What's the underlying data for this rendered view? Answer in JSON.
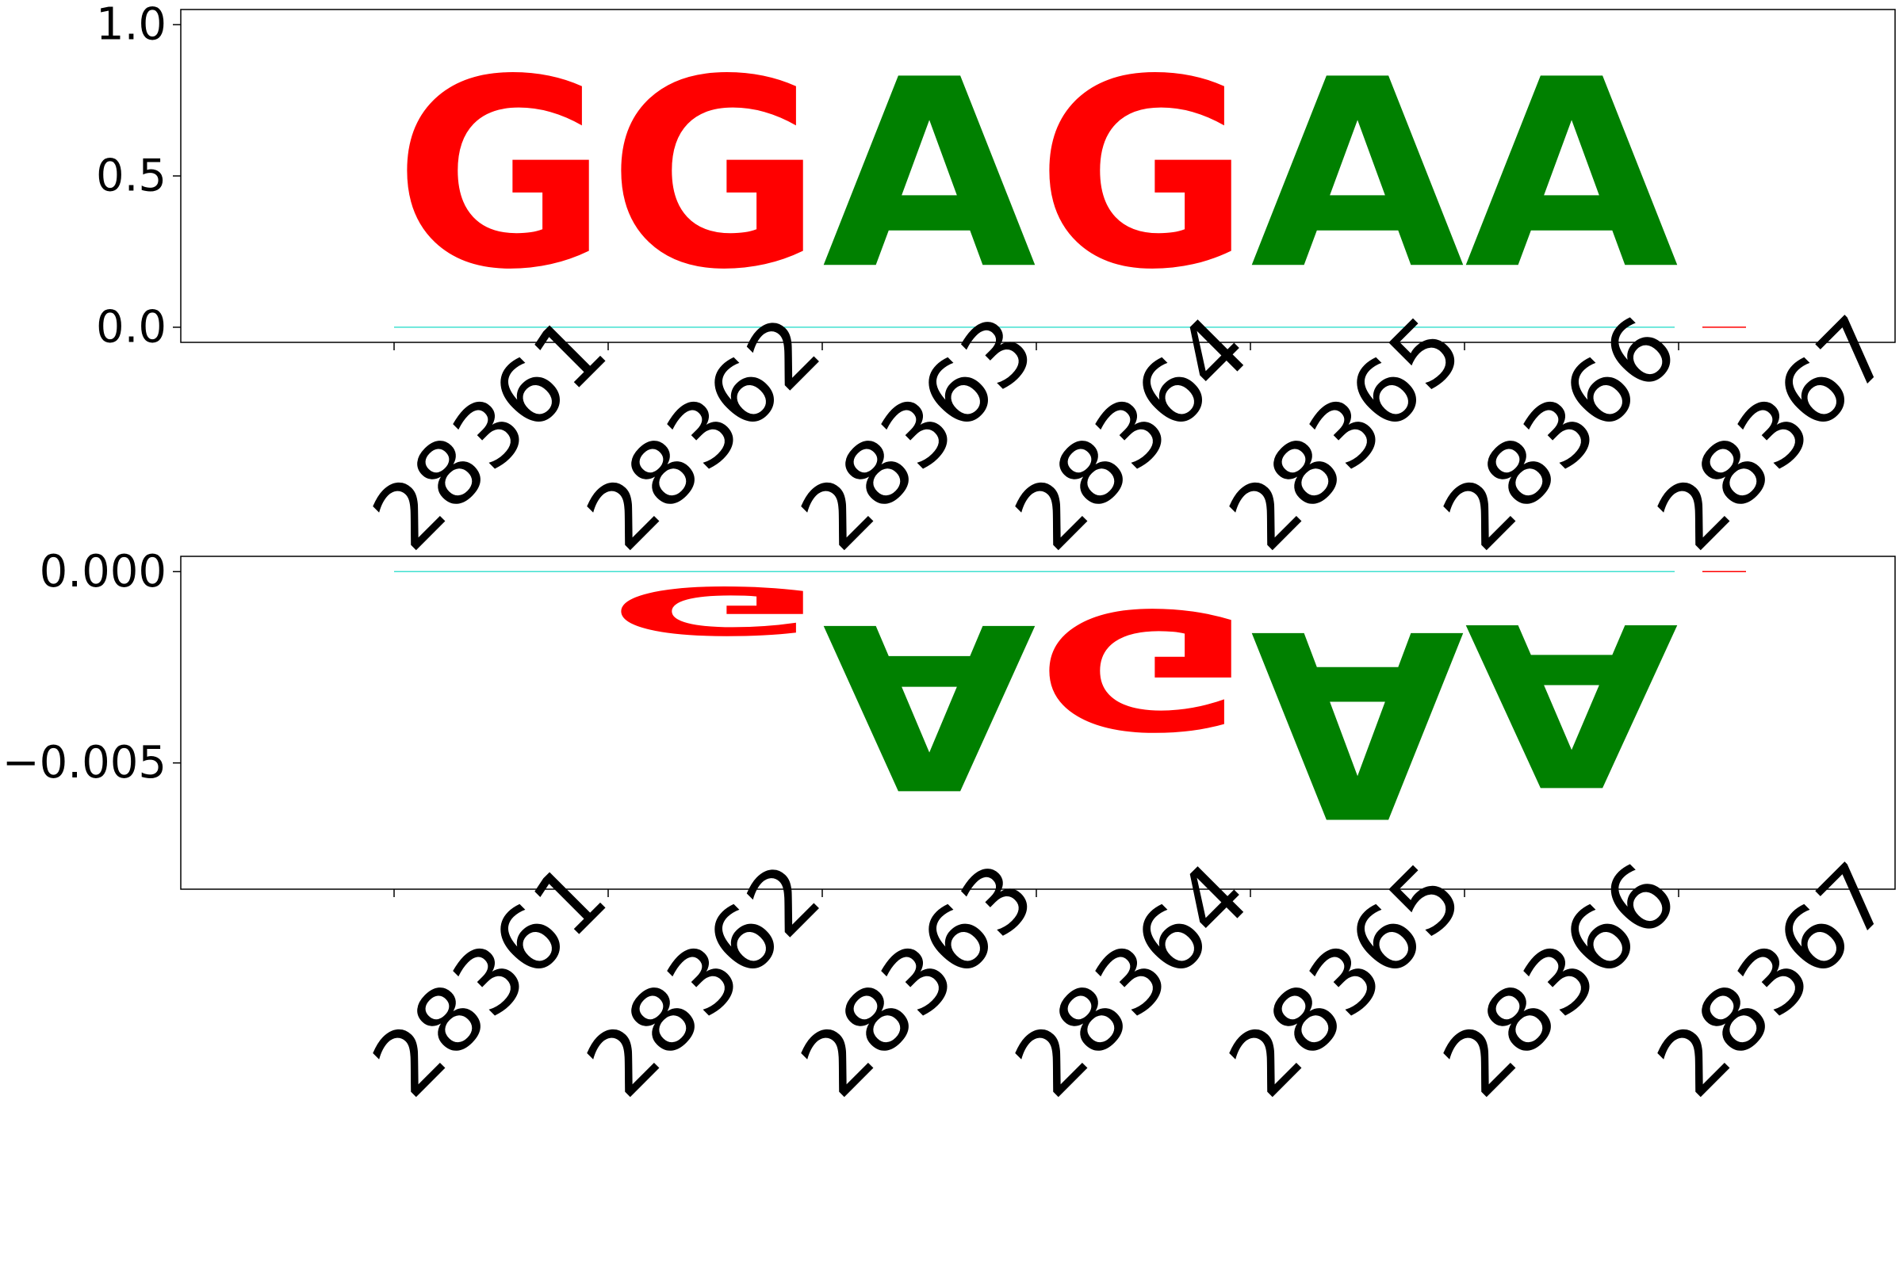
{
  "chart_data": [
    {
      "type": "logo",
      "title": "",
      "xlabel": "",
      "ylabel": "",
      "positions": [
        "28361",
        "28362",
        "28363",
        "28364",
        "28365",
        "28366",
        "28367"
      ],
      "ylim": [
        -0.05,
        1.05
      ],
      "yticks": [
        "0.0",
        "0.5",
        "1.0"
      ],
      "ytick_values": [
        0.0,
        0.5,
        1.0
      ],
      "letters": [
        {
          "position": "28361",
          "letter": "G",
          "value": 1.0
        },
        {
          "position": "28362",
          "letter": "G",
          "value": 1.0
        },
        {
          "position": "28363",
          "letter": "A",
          "value": 1.0
        },
        {
          "position": "28364",
          "letter": "G",
          "value": 1.0
        },
        {
          "position": "28365",
          "letter": "A",
          "value": 1.0
        },
        {
          "position": "28366",
          "letter": "A",
          "value": 1.0
        }
      ],
      "grid": false,
      "legend": "none"
    },
    {
      "type": "logo",
      "title": "",
      "xlabel": "",
      "ylabel": "",
      "positions": [
        "28361",
        "28362",
        "28363",
        "28364",
        "28365",
        "28366",
        "28367"
      ],
      "ylim": [
        -0.0083,
        0.0004
      ],
      "yticks": [
        "0.000",
        "−0.005"
      ],
      "ytick_values": [
        0.0,
        -0.005
      ],
      "letters": [
        {
          "position": "28362",
          "letter": "G",
          "value": -0.002
        },
        {
          "position": "28363",
          "letter": "A",
          "value": -0.0069
        },
        {
          "position": "28364",
          "letter": "G",
          "value": -0.005
        },
        {
          "position": "28365",
          "letter": "A",
          "value": -0.0078
        },
        {
          "position": "28366",
          "letter": "A",
          "value": -0.0068
        }
      ],
      "grid": false,
      "legend": "none"
    }
  ],
  "colors": {
    "A": "#008000",
    "G": "#ff0000",
    "baseline": "#40e0d0"
  }
}
